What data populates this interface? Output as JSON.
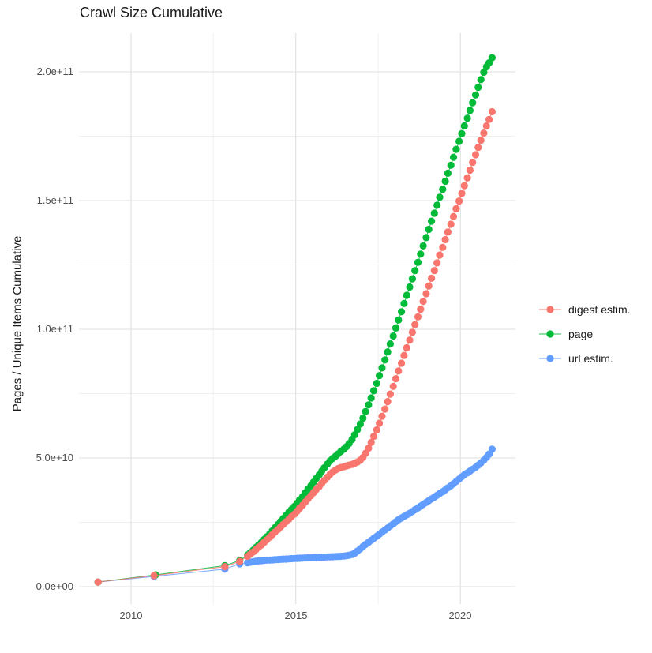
{
  "chart_data": {
    "type": "scatter",
    "title": "Crawl Size Cumulative",
    "xlabel": "",
    "ylabel": "Pages / Unique Items Cumulative",
    "value_unit": 1000000000.0,
    "xlim": [
      2008.42,
      2021.67
    ],
    "ylim": [
      -6.75,
      215.03
    ],
    "grid": "on",
    "legend_position": "right",
    "x_ticks": [
      {
        "v": 2010,
        "label": "2010"
      },
      {
        "v": 2015,
        "label": "2015"
      },
      {
        "v": 2020,
        "label": "2020"
      }
    ],
    "x_minor_ticks": [
      2012.5,
      2017.5
    ],
    "y_ticks": [
      {
        "v": 0,
        "label": "0.0e+00"
      },
      {
        "v": 50,
        "label": "5.0e+10"
      },
      {
        "v": 100,
        "label": "1.0e+11"
      },
      {
        "v": 150,
        "label": "1.5e+11"
      },
      {
        "v": 200,
        "label": "2.0e+11"
      }
    ],
    "y_minor_ticks": [
      25,
      75,
      125,
      175
    ],
    "colors": {
      "grid_major": "#e5e5e5",
      "grid_minor": "#f0f0f0"
    },
    "draw_order": [
      2,
      1,
      0
    ],
    "series": [
      {
        "name": "digest estim.",
        "color": "#F8766D",
        "points": [
          [
            2009.0,
            1.8
          ],
          [
            2010.7,
            4.3
          ],
          [
            2012.85,
            7.8
          ],
          [
            2013.3,
            9.8
          ],
          [
            2013.54,
            11.8
          ],
          [
            2013.62,
            12.6
          ],
          [
            2013.71,
            13.5
          ],
          [
            2013.79,
            14.4
          ],
          [
            2013.87,
            15.3
          ],
          [
            2013.96,
            16.2
          ],
          [
            2014.04,
            17.2
          ],
          [
            2014.12,
            18.2
          ],
          [
            2014.21,
            19.2
          ],
          [
            2014.29,
            20.2
          ],
          [
            2014.37,
            21.2
          ],
          [
            2014.46,
            22.2
          ],
          [
            2014.54,
            23.2
          ],
          [
            2014.62,
            24.2
          ],
          [
            2014.71,
            25.2
          ],
          [
            2014.79,
            26.2
          ],
          [
            2014.87,
            27.2
          ],
          [
            2014.96,
            28.2
          ],
          [
            2015.04,
            29.3
          ],
          [
            2015.12,
            30.5
          ],
          [
            2015.21,
            31.7
          ],
          [
            2015.29,
            32.9
          ],
          [
            2015.37,
            34.1
          ],
          [
            2015.46,
            35.3
          ],
          [
            2015.54,
            36.5
          ],
          [
            2015.62,
            37.7
          ],
          [
            2015.71,
            38.9
          ],
          [
            2015.79,
            40.1
          ],
          [
            2015.87,
            41.3
          ],
          [
            2015.96,
            42.5
          ],
          [
            2016.04,
            43.6
          ],
          [
            2016.12,
            44.5
          ],
          [
            2016.21,
            45.3
          ],
          [
            2016.29,
            45.9
          ],
          [
            2016.37,
            46.3
          ],
          [
            2016.46,
            46.6
          ],
          [
            2016.54,
            46.9
          ],
          [
            2016.62,
            47.2
          ],
          [
            2016.71,
            47.5
          ],
          [
            2016.79,
            47.9
          ],
          [
            2016.87,
            48.4
          ],
          [
            2016.96,
            49.1
          ],
          [
            2017.04,
            50.2
          ],
          [
            2017.12,
            51.8
          ],
          [
            2017.21,
            53.8
          ],
          [
            2017.29,
            56.0
          ],
          [
            2017.37,
            58.4
          ],
          [
            2017.46,
            60.9
          ],
          [
            2017.54,
            63.5
          ],
          [
            2017.62,
            66.2
          ],
          [
            2017.71,
            69.0
          ],
          [
            2017.79,
            71.9
          ],
          [
            2017.87,
            74.8
          ],
          [
            2017.96,
            77.8
          ],
          [
            2018.04,
            80.8
          ],
          [
            2018.12,
            83.8
          ],
          [
            2018.21,
            86.8
          ],
          [
            2018.29,
            89.8
          ],
          [
            2018.37,
            92.8
          ],
          [
            2018.46,
            95.8
          ],
          [
            2018.54,
            98.8
          ],
          [
            2018.62,
            101.8
          ],
          [
            2018.71,
            104.8
          ],
          [
            2018.79,
            107.8
          ],
          [
            2018.87,
            110.8
          ],
          [
            2018.96,
            113.8
          ],
          [
            2019.04,
            116.8
          ],
          [
            2019.12,
            119.8
          ],
          [
            2019.21,
            122.8
          ],
          [
            2019.29,
            125.8
          ],
          [
            2019.37,
            128.8
          ],
          [
            2019.46,
            131.8
          ],
          [
            2019.54,
            134.8
          ],
          [
            2019.62,
            137.8
          ],
          [
            2019.71,
            140.8
          ],
          [
            2019.79,
            143.8
          ],
          [
            2019.87,
            146.8
          ],
          [
            2019.96,
            149.8
          ],
          [
            2020.04,
            152.8
          ],
          [
            2020.12,
            155.8
          ],
          [
            2020.21,
            158.8
          ],
          [
            2020.29,
            161.8
          ],
          [
            2020.37,
            164.8
          ],
          [
            2020.46,
            167.8
          ],
          [
            2020.54,
            170.6
          ],
          [
            2020.62,
            173.4
          ],
          [
            2020.71,
            176.2
          ],
          [
            2020.79,
            179.0
          ],
          [
            2020.87,
            181.5
          ],
          [
            2020.96,
            184.5
          ]
        ]
      },
      {
        "name": "page",
        "color": "#00BA38",
        "points": [
          [
            2009.0,
            1.8
          ],
          [
            2010.75,
            4.6
          ],
          [
            2012.85,
            8.2
          ],
          [
            2013.3,
            10.2
          ],
          [
            2013.54,
            12.3
          ],
          [
            2013.62,
            13.2
          ],
          [
            2013.71,
            14.2
          ],
          [
            2013.79,
            15.2
          ],
          [
            2013.87,
            16.2
          ],
          [
            2013.96,
            17.2
          ],
          [
            2014.04,
            18.3
          ],
          [
            2014.12,
            19.4
          ],
          [
            2014.21,
            20.5
          ],
          [
            2014.29,
            21.7
          ],
          [
            2014.37,
            22.9
          ],
          [
            2014.46,
            24.1
          ],
          [
            2014.54,
            25.3
          ],
          [
            2014.62,
            26.5
          ],
          [
            2014.71,
            27.7
          ],
          [
            2014.79,
            28.9
          ],
          [
            2014.87,
            30.0
          ],
          [
            2014.96,
            31.2
          ],
          [
            2015.04,
            32.4
          ],
          [
            2015.12,
            33.7
          ],
          [
            2015.21,
            35.0
          ],
          [
            2015.29,
            36.4
          ],
          [
            2015.37,
            37.8
          ],
          [
            2015.46,
            39.2
          ],
          [
            2015.54,
            40.6
          ],
          [
            2015.62,
            42.0
          ],
          [
            2015.71,
            43.4
          ],
          [
            2015.79,
            44.8
          ],
          [
            2015.87,
            46.2
          ],
          [
            2015.96,
            47.6
          ],
          [
            2016.04,
            48.8
          ],
          [
            2016.12,
            49.8
          ],
          [
            2016.21,
            50.7
          ],
          [
            2016.29,
            51.6
          ],
          [
            2016.37,
            52.5
          ],
          [
            2016.46,
            53.4
          ],
          [
            2016.54,
            54.4
          ],
          [
            2016.62,
            55.6
          ],
          [
            2016.71,
            57.2
          ],
          [
            2016.79,
            59.0
          ],
          [
            2016.87,
            61.0
          ],
          [
            2016.96,
            63.2
          ],
          [
            2017.04,
            65.5
          ],
          [
            2017.12,
            68.0
          ],
          [
            2017.21,
            70.6
          ],
          [
            2017.29,
            73.3
          ],
          [
            2017.37,
            76.1
          ],
          [
            2017.46,
            79.0
          ],
          [
            2017.54,
            82.0
          ],
          [
            2017.62,
            85.0
          ],
          [
            2017.71,
            88.1
          ],
          [
            2017.79,
            91.2
          ],
          [
            2017.87,
            94.3
          ],
          [
            2017.96,
            97.4
          ],
          [
            2018.04,
            100.5
          ],
          [
            2018.12,
            103.6
          ],
          [
            2018.21,
            106.8
          ],
          [
            2018.29,
            110.0
          ],
          [
            2018.37,
            113.2
          ],
          [
            2018.46,
            116.4
          ],
          [
            2018.54,
            119.6
          ],
          [
            2018.62,
            122.8
          ],
          [
            2018.71,
            126.0
          ],
          [
            2018.79,
            129.2
          ],
          [
            2018.87,
            132.4
          ],
          [
            2018.96,
            135.6
          ],
          [
            2019.04,
            138.8
          ],
          [
            2019.12,
            142.0
          ],
          [
            2019.21,
            145.1
          ],
          [
            2019.29,
            148.2
          ],
          [
            2019.37,
            151.3
          ],
          [
            2019.46,
            154.4
          ],
          [
            2019.54,
            157.5
          ],
          [
            2019.62,
            160.6
          ],
          [
            2019.71,
            163.7
          ],
          [
            2019.79,
            166.8
          ],
          [
            2019.87,
            169.9
          ],
          [
            2019.96,
            173.0
          ],
          [
            2020.04,
            176.0
          ],
          [
            2020.12,
            179.0
          ],
          [
            2020.21,
            182.0
          ],
          [
            2020.29,
            185.0
          ],
          [
            2020.37,
            188.0
          ],
          [
            2020.46,
            191.0
          ],
          [
            2020.54,
            194.0
          ],
          [
            2020.62,
            197.0
          ],
          [
            2020.71,
            199.8
          ],
          [
            2020.79,
            202.0
          ],
          [
            2020.87,
            203.5
          ],
          [
            2020.96,
            205.5
          ]
        ]
      },
      {
        "name": "url estim.",
        "color": "#619CFF",
        "points": [
          [
            2009.0,
            1.8
          ],
          [
            2010.7,
            4.0
          ],
          [
            2012.85,
            6.8
          ],
          [
            2013.3,
            8.9
          ],
          [
            2013.54,
            9.3
          ],
          [
            2013.62,
            9.5
          ],
          [
            2013.71,
            9.7
          ],
          [
            2013.79,
            9.9
          ],
          [
            2013.87,
            10.0
          ],
          [
            2013.96,
            10.1
          ],
          [
            2014.04,
            10.2
          ],
          [
            2014.12,
            10.3
          ],
          [
            2014.21,
            10.35
          ],
          [
            2014.29,
            10.4
          ],
          [
            2014.37,
            10.5
          ],
          [
            2014.46,
            10.55
          ],
          [
            2014.54,
            10.6
          ],
          [
            2014.62,
            10.7
          ],
          [
            2014.71,
            10.75
          ],
          [
            2014.79,
            10.8
          ],
          [
            2014.87,
            10.9
          ],
          [
            2014.96,
            10.95
          ],
          [
            2015.04,
            11.0
          ],
          [
            2015.12,
            11.05
          ],
          [
            2015.21,
            11.1
          ],
          [
            2015.29,
            11.15
          ],
          [
            2015.37,
            11.2
          ],
          [
            2015.46,
            11.25
          ],
          [
            2015.54,
            11.3
          ],
          [
            2015.62,
            11.35
          ],
          [
            2015.71,
            11.4
          ],
          [
            2015.79,
            11.45
          ],
          [
            2015.87,
            11.5
          ],
          [
            2015.96,
            11.55
          ],
          [
            2016.04,
            11.6
          ],
          [
            2016.12,
            11.65
          ],
          [
            2016.21,
            11.7
          ],
          [
            2016.29,
            11.75
          ],
          [
            2016.37,
            11.8
          ],
          [
            2016.46,
            11.9
          ],
          [
            2016.54,
            12.0
          ],
          [
            2016.62,
            12.2
          ],
          [
            2016.71,
            12.5
          ],
          [
            2016.79,
            13.0
          ],
          [
            2016.87,
            13.8
          ],
          [
            2016.96,
            14.7
          ],
          [
            2017.04,
            15.6
          ],
          [
            2017.12,
            16.4
          ],
          [
            2017.21,
            17.2
          ],
          [
            2017.29,
            18.0
          ],
          [
            2017.37,
            18.8
          ],
          [
            2017.46,
            19.6
          ],
          [
            2017.54,
            20.4
          ],
          [
            2017.62,
            21.2
          ],
          [
            2017.71,
            22.0
          ],
          [
            2017.79,
            22.8
          ],
          [
            2017.87,
            23.6
          ],
          [
            2017.96,
            24.4
          ],
          [
            2018.04,
            25.2
          ],
          [
            2018.12,
            26.0
          ],
          [
            2018.21,
            26.7
          ],
          [
            2018.29,
            27.3
          ],
          [
            2018.37,
            27.9
          ],
          [
            2018.46,
            28.5
          ],
          [
            2018.54,
            29.2
          ],
          [
            2018.62,
            29.9
          ],
          [
            2018.71,
            30.6
          ],
          [
            2018.79,
            31.3
          ],
          [
            2018.87,
            32.0
          ],
          [
            2018.96,
            32.7
          ],
          [
            2019.04,
            33.4
          ],
          [
            2019.12,
            34.1
          ],
          [
            2019.21,
            34.8
          ],
          [
            2019.29,
            35.5
          ],
          [
            2019.37,
            36.2
          ],
          [
            2019.46,
            36.9
          ],
          [
            2019.54,
            37.6
          ],
          [
            2019.62,
            38.4
          ],
          [
            2019.71,
            39.2
          ],
          [
            2019.79,
            40.0
          ],
          [
            2019.87,
            40.9
          ],
          [
            2019.96,
            41.8
          ],
          [
            2020.04,
            42.7
          ],
          [
            2020.12,
            43.5
          ],
          [
            2020.21,
            44.2
          ],
          [
            2020.29,
            44.9
          ],
          [
            2020.37,
            45.6
          ],
          [
            2020.46,
            46.4
          ],
          [
            2020.54,
            47.2
          ],
          [
            2020.62,
            48.1
          ],
          [
            2020.71,
            49.1
          ],
          [
            2020.79,
            50.2
          ],
          [
            2020.87,
            51.5
          ],
          [
            2020.96,
            53.4
          ]
        ]
      }
    ]
  }
}
